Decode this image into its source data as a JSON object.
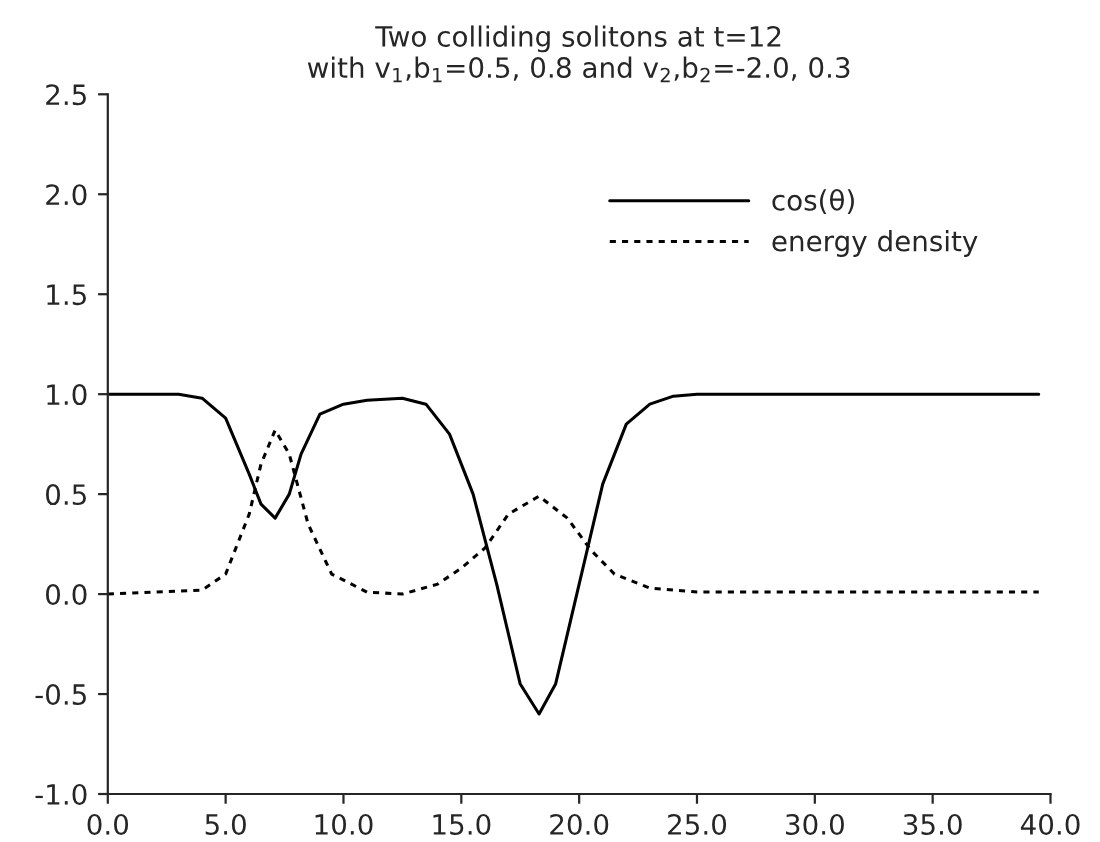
{
  "chart_data": {
    "type": "line",
    "title": "Two colliding solitons at t=12\nwith v$_{1}$,b$_{1}$=0.5, 0.8 and v$_{2}$,b$_{2}$=-2.0, 0.3",
    "xlim": [
      0,
      40
    ],
    "xticks": [
      {
        "value": 0,
        "label": "0.0"
      },
      {
        "value": 5,
        "label": "5.0"
      },
      {
        "value": 10,
        "label": "10.0"
      },
      {
        "value": 15,
        "label": "15.0"
      },
      {
        "value": 20,
        "label": "20.0"
      },
      {
        "value": 25,
        "label": "25.0"
      },
      {
        "value": 30,
        "label": "30.0"
      },
      {
        "value": 35,
        "label": "35.0"
      },
      {
        "value": 40,
        "label": "40.0"
      }
    ],
    "ylim": [
      -1,
      2.5
    ],
    "yticks": [
      {
        "value": -1,
        "label": "-1.0"
      },
      {
        "value": -0.5,
        "label": "-0.5"
      },
      {
        "value": 0,
        "label": "0.0"
      },
      {
        "value": 0.5,
        "label": "0.5"
      },
      {
        "value": 1,
        "label": "1.0"
      },
      {
        "value": 1.5,
        "label": "1.5"
      },
      {
        "value": 2,
        "label": "2.0"
      },
      {
        "value": 2.5,
        "label": "2.5"
      }
    ],
    "grid": false,
    "legend": "top right",
    "marker": "none",
    "series": [
      {
        "name": "cos(θ)",
        "color": "#000000",
        "line_style": "solid",
        "x": [
          0,
          3,
          4,
          5,
          6,
          6.5,
          7.1,
          7.7,
          8.2,
          9,
          10,
          11,
          12.5,
          13.5,
          14.5,
          15.5,
          16.5,
          17.5,
          18.3,
          19,
          20,
          21,
          22,
          23,
          24,
          25,
          39.5
        ],
        "values": [
          1.0,
          1.0,
          0.98,
          0.88,
          0.6,
          0.45,
          0.38,
          0.5,
          0.7,
          0.9,
          0.95,
          0.97,
          0.98,
          0.95,
          0.8,
          0.5,
          0.05,
          -0.45,
          -0.6,
          -0.45,
          0.05,
          0.55,
          0.85,
          0.95,
          0.99,
          1.0,
          1.0
        ]
      },
      {
        "name": "energy density",
        "color": "#000000",
        "line_style": "dotted",
        "x": [
          0,
          4,
          5,
          6,
          6.5,
          7.1,
          7.7,
          8.5,
          9.5,
          11,
          12.5,
          14,
          15,
          16,
          17,
          18.3,
          19.5,
          20.5,
          21.5,
          23,
          25,
          39.5
        ],
        "values": [
          0.0,
          0.02,
          0.1,
          0.4,
          0.65,
          0.82,
          0.7,
          0.35,
          0.1,
          0.01,
          0.0,
          0.05,
          0.13,
          0.23,
          0.4,
          0.49,
          0.38,
          0.22,
          0.1,
          0.03,
          0.01,
          0.01
        ]
      }
    ]
  }
}
